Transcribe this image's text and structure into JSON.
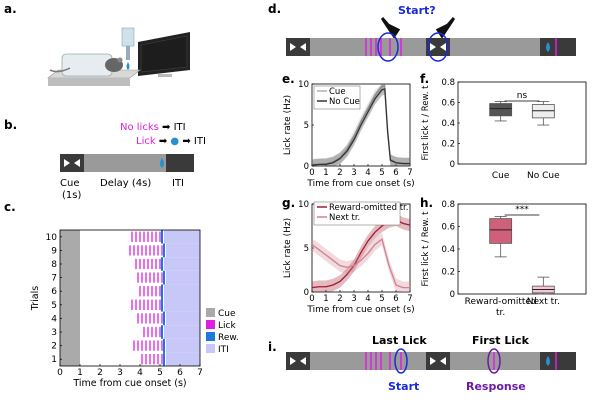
{
  "labels": {
    "a": "a.",
    "b": "b.",
    "c": "c.",
    "d": "d.",
    "e": "e.",
    "f": "f.",
    "g": "g.",
    "h": "h.",
    "i": "i."
  },
  "panel_b": {
    "no_licks": "No licks",
    "no_licks_result": "ITI",
    "lick": "Lick",
    "lick_result": "ITI",
    "arrow": "➡",
    "cue_label": "Cue",
    "cue_duration": "(1s)",
    "delay_label": "Delay (4s)",
    "iti_label": "ITI",
    "colors": {
      "magenta": "#e020e0",
      "cue_dark": "#3a3a3a",
      "delay_gray": "#9a9a9a",
      "iti_dark": "#3a3a3a",
      "drop_blue": "#2a8fd0"
    }
  },
  "panel_d": {
    "start_question": "Start?",
    "start_color": "#1a2adb"
  },
  "panel_i": {
    "last_lick": "Last Lick",
    "first_lick": "First Lick",
    "start": "Start",
    "response": "Response",
    "start_color": "#1a2adb",
    "response_color": "#6a1aa8"
  },
  "chart_data": [
    {
      "id": "c",
      "type": "scatter",
      "title": "",
      "xlabel": "Time from cue onset (s)",
      "ylabel": "Trials",
      "xlim": [
        0,
        7
      ],
      "ylim": [
        0.5,
        10.5
      ],
      "xticks": [
        "0",
        "1",
        "2",
        "3",
        "4",
        "5",
        "6",
        "7"
      ],
      "yticks": [
        "1",
        "2",
        "3",
        "4",
        "5",
        "6",
        "7",
        "8",
        "9",
        "10"
      ],
      "legend": [
        "Cue",
        "Lick",
        "Rew.",
        "ITI"
      ],
      "legend_colors": [
        "#aaaaaa",
        "#e020e0",
        "#1f77e0",
        "#c8c8f8"
      ],
      "cue_window": [
        0,
        1
      ],
      "trials": [
        {
          "trial": 1,
          "licks": [
            4.1,
            4.3,
            4.5,
            4.7,
            4.9,
            5.1
          ],
          "reward": 5.2,
          "iti_start": 5.3
        },
        {
          "trial": 2,
          "licks": [
            3.7,
            3.9,
            4.1,
            4.3,
            4.5,
            4.7,
            4.9,
            5.1
          ],
          "reward": 5.2,
          "iti_start": 5.3
        },
        {
          "trial": 3,
          "licks": [
            4.2,
            4.4,
            4.6,
            4.8,
            5.0
          ],
          "reward": 5.1,
          "iti_start": 5.2
        },
        {
          "trial": 4,
          "licks": [
            3.9,
            4.1,
            4.3,
            4.5,
            4.7,
            4.9,
            5.1
          ],
          "reward": 5.2,
          "iti_start": 5.3
        },
        {
          "trial": 5,
          "licks": [
            3.6,
            3.8,
            4.0,
            4.2,
            4.4,
            4.6,
            4.8,
            5.0
          ],
          "reward": 5.1,
          "iti_start": 5.2
        },
        {
          "trial": 6,
          "licks": [
            4.0,
            4.2,
            4.4,
            4.6,
            4.8,
            5.0
          ],
          "reward": 5.1,
          "iti_start": 5.2
        },
        {
          "trial": 7,
          "licks": [
            3.9,
            4.1,
            4.3,
            4.5,
            4.7,
            4.9,
            5.1
          ],
          "reward": 5.2,
          "iti_start": 5.3
        },
        {
          "trial": 8,
          "licks": [
            3.8,
            4.0,
            4.2,
            4.4,
            4.6,
            4.8,
            5.0
          ],
          "reward": 5.1,
          "iti_start": 5.2
        },
        {
          "trial": 9,
          "licks": [
            3.5,
            3.7,
            3.9,
            4.1,
            4.3,
            4.5,
            4.7,
            4.9,
            5.1
          ],
          "reward": 5.2,
          "iti_start": 5.3
        },
        {
          "trial": 10,
          "licks": [
            3.6,
            3.8,
            4.0,
            4.2,
            4.4,
            4.6,
            4.8,
            5.0
          ],
          "reward": 5.1,
          "iti_start": 5.2
        }
      ]
    },
    {
      "id": "e",
      "type": "line",
      "xlabel": "Time from cue onset (s)",
      "ylabel": "Lick rate (Hz)",
      "xlim": [
        0,
        7
      ],
      "ylim": [
        0,
        10
      ],
      "xticks": [
        "0",
        "1",
        "2",
        "3",
        "4",
        "5",
        "6",
        "7"
      ],
      "yticks": [
        "0",
        "5",
        "10"
      ],
      "legend": [
        "Cue",
        "No Cue"
      ],
      "x": [
        0,
        0.5,
        1,
        1.5,
        2,
        2.5,
        3,
        3.5,
        4,
        4.5,
        5,
        5.2,
        5.4,
        5.6,
        6,
        6.5,
        7
      ],
      "series": [
        {
          "name": "Cue",
          "color": "#b0b0b0",
          "values": [
            0.2,
            0.2,
            0.3,
            0.5,
            1.0,
            2.0,
            3.6,
            5.4,
            7.0,
            8.6,
            9.7,
            9.8,
            4.5,
            0.8,
            0.4,
            0.3,
            0.3
          ]
        },
        {
          "name": "No Cue",
          "color": "#333333",
          "values": [
            0.1,
            0.2,
            0.2,
            0.4,
            0.9,
            1.8,
            3.2,
            5.0,
            6.6,
            8.2,
            9.3,
            9.4,
            4.2,
            0.7,
            0.4,
            0.3,
            0.3
          ]
        }
      ]
    },
    {
      "id": "f",
      "type": "box",
      "xlabel": "",
      "ylabel": "First lick t / Rew. t",
      "ylim": [
        0,
        0.8
      ],
      "yticks": [
        "0",
        "0.2",
        "0.4",
        "0.6",
        "0.8"
      ],
      "categories": [
        "Cue",
        "No Cue"
      ],
      "significance": "ns",
      "boxes": [
        {
          "name": "Cue",
          "color": "#555555",
          "min": 0.42,
          "q1": 0.47,
          "median": 0.54,
          "q3": 0.59,
          "max": 0.61
        },
        {
          "name": "No Cue",
          "color": "#eeeeee",
          "min": 0.38,
          "q1": 0.45,
          "median": 0.52,
          "q3": 0.58,
          "max": 0.61
        }
      ]
    },
    {
      "id": "g",
      "type": "line",
      "xlabel": "Time from cue onset (s)",
      "ylabel": "Lick rate (Hz)",
      "xlim": [
        0,
        7
      ],
      "ylim": [
        0,
        10
      ],
      "xticks": [
        "0",
        "1",
        "2",
        "3",
        "4",
        "5",
        "6",
        "7"
      ],
      "yticks": [
        "0",
        "5",
        "10"
      ],
      "legend": [
        "Reward-omitted tr.",
        "Next tr."
      ],
      "x": [
        0,
        0.5,
        1,
        1.5,
        2,
        2.5,
        3,
        3.5,
        4,
        4.5,
        5,
        5.5,
        6,
        6.5,
        7
      ],
      "series": [
        {
          "name": "Reward-omitted tr.",
          "color": "#a01a30",
          "values": [
            0.5,
            0.6,
            0.6,
            0.8,
            1.2,
            2.0,
            3.0,
            4.5,
            5.8,
            6.8,
            7.5,
            8.0,
            8.2,
            7.8,
            7.6
          ]
        },
        {
          "name": "Next tr.",
          "color": "#d08090",
          "values": [
            5.4,
            4.8,
            4.2,
            3.6,
            3.0,
            2.8,
            3.0,
            3.6,
            4.4,
            5.4,
            6.0,
            3.0,
            0.8,
            0.5,
            0.5
          ]
        }
      ]
    },
    {
      "id": "h",
      "type": "box",
      "xlabel": "",
      "ylabel": "First lick t / Rew. t",
      "ylim": [
        0,
        0.8
      ],
      "yticks": [
        "0",
        "0.2",
        "0.4",
        "0.6",
        "0.8"
      ],
      "categories": [
        "Reward-omitted tr.",
        "Next tr."
      ],
      "significance": "***",
      "boxes": [
        {
          "name": "Reward-omitted tr.",
          "color": "#d0607a",
          "min": 0.33,
          "q1": 0.45,
          "median": 0.57,
          "q3": 0.67,
          "max": 0.69
        },
        {
          "name": "Next tr.",
          "color": "#f4c8d4",
          "min": 0.0,
          "q1": 0.01,
          "median": 0.04,
          "q3": 0.07,
          "max": 0.15
        }
      ]
    }
  ]
}
